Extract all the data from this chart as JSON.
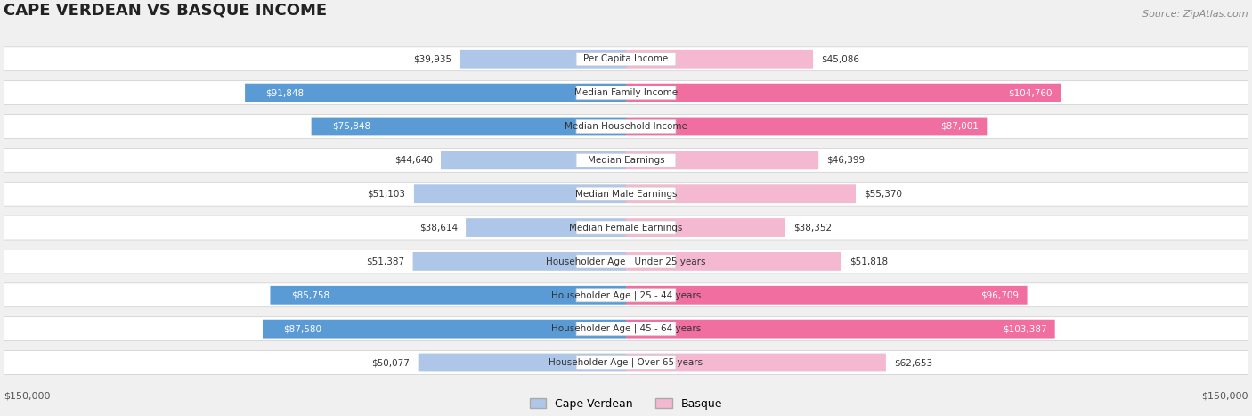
{
  "title": "CAPE VERDEAN VS BASQUE INCOME",
  "source": "Source: ZipAtlas.com",
  "categories": [
    "Per Capita Income",
    "Median Family Income",
    "Median Household Income",
    "Median Earnings",
    "Median Male Earnings",
    "Median Female Earnings",
    "Householder Age | Under 25 years",
    "Householder Age | 25 - 44 years",
    "Householder Age | 45 - 64 years",
    "Householder Age | Over 65 years"
  ],
  "cape_verdean": [
    39935,
    91848,
    75848,
    44640,
    51103,
    38614,
    51387,
    85758,
    87580,
    50077
  ],
  "basque": [
    45086,
    104760,
    87001,
    46399,
    55370,
    38352,
    51818,
    96709,
    103387,
    62653
  ],
  "cape_verdean_labels": [
    "$39,935",
    "$91,848",
    "$75,848",
    "$44,640",
    "$51,103",
    "$38,614",
    "$51,387",
    "$85,758",
    "$87,580",
    "$50,077"
  ],
  "basque_labels": [
    "$45,086",
    "$104,760",
    "$87,001",
    "$46,399",
    "$55,370",
    "$38,352",
    "$51,818",
    "$96,709",
    "$103,387",
    "$62,653"
  ],
  "max_val": 150000,
  "cape_verdean_color_strong": "#5b9bd5",
  "cape_verdean_color_light": "#aec7e8",
  "basque_color_strong": "#f06fa0",
  "basque_color_light": "#f4b8d0",
  "bg_color": "#f0f0f0",
  "row_bg": "#ffffff",
  "label_bg": "#f5f5f5",
  "axis_label_left": "$150,000",
  "axis_label_right": "$150,000"
}
